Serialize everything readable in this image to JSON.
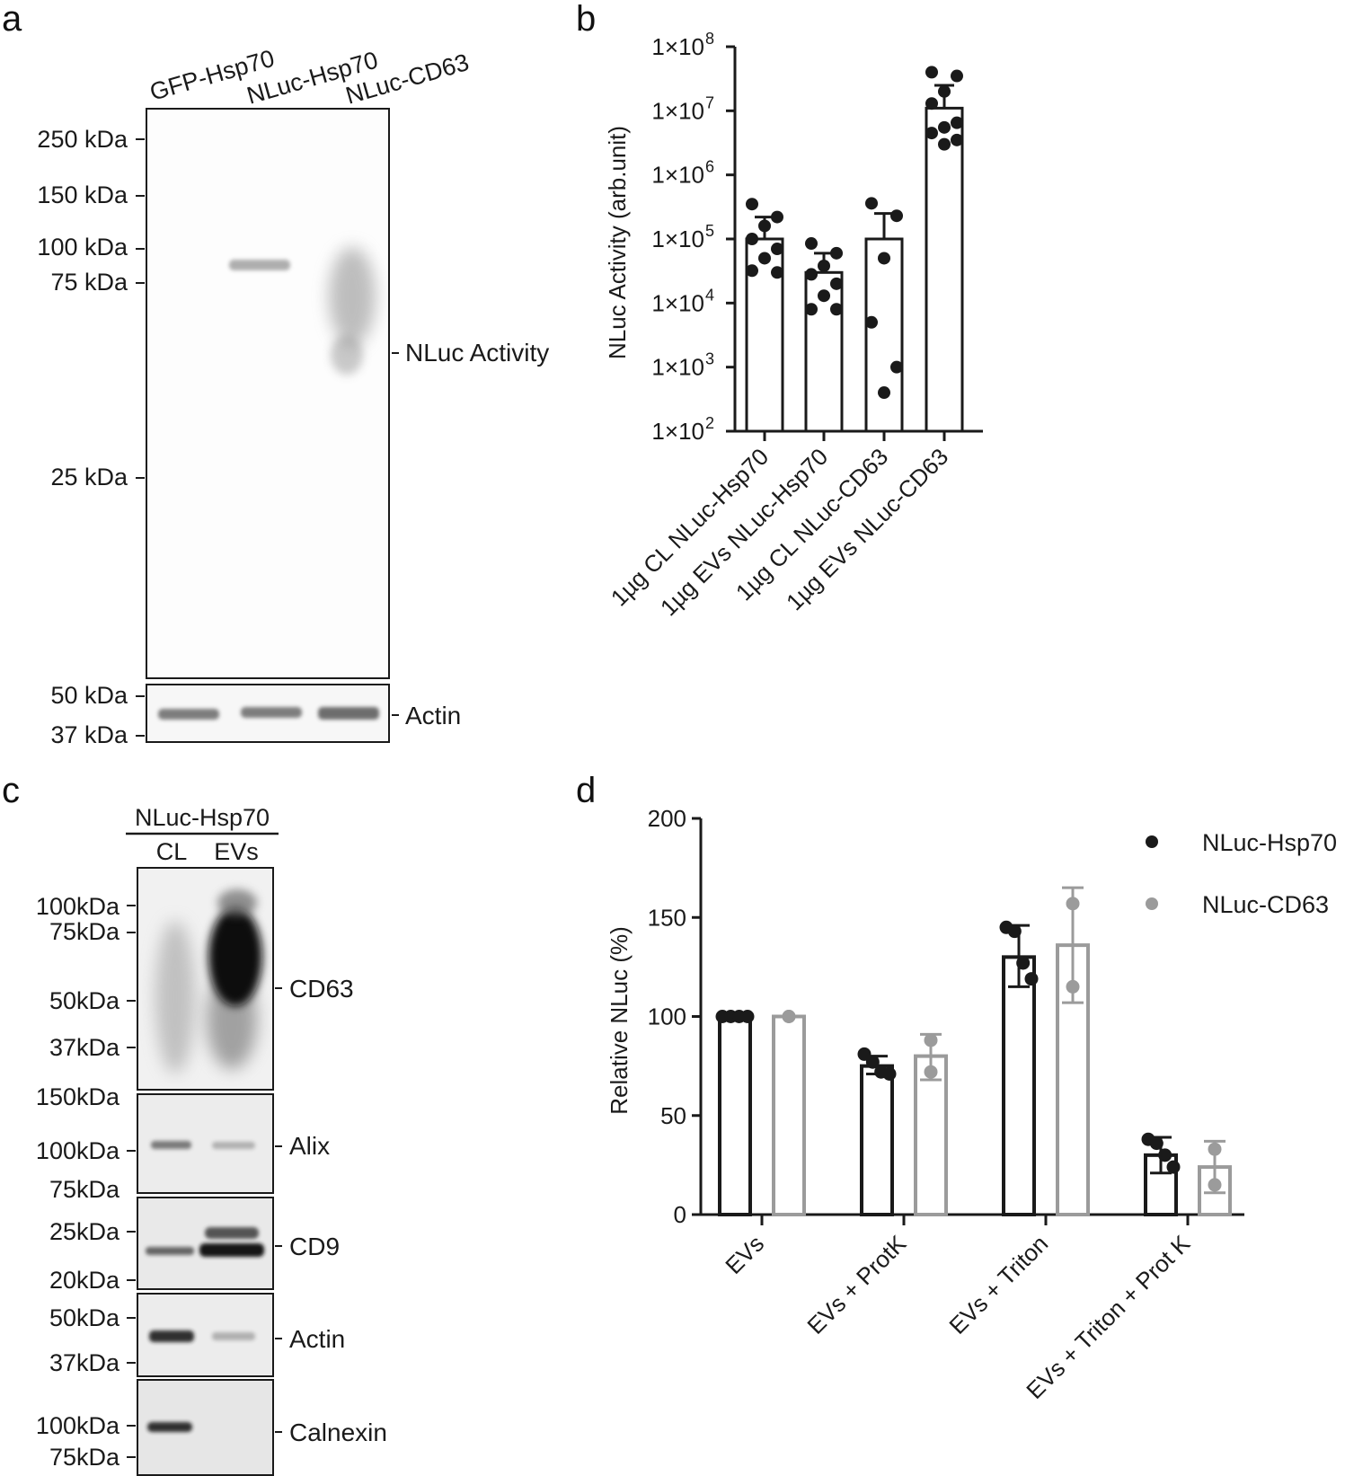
{
  "panels": {
    "a": {
      "letter": "a",
      "lanes": [
        "GFP-Hsp70",
        "NLuc-Hsp70",
        "NLuc-CD63"
      ],
      "markers_main": [
        "250 kDa",
        "150 kDa",
        "100 kDa",
        "75 kDa",
        "25 kDa"
      ],
      "markers_actin": [
        "50 kDa",
        "37 kDa"
      ],
      "band_labels": [
        "NLuc Activity",
        "Actin"
      ]
    },
    "b": {
      "letter": "b"
    },
    "c": {
      "letter": "c",
      "group_label": "NLuc-Hsp70",
      "lanes": [
        "CL",
        "EVs"
      ],
      "blots": [
        {
          "label": "CD63",
          "markers": [
            "100kDa",
            "75kDa",
            "50kDa",
            "37kDa"
          ]
        },
        {
          "label": "Alix",
          "markers": [
            "150kDa",
            "100kDa",
            "75kDa"
          ]
        },
        {
          "label": "CD9",
          "markers": [
            "25kDa",
            "20kDa"
          ]
        },
        {
          "label": "Actin",
          "markers": [
            "50kDa",
            "37kDa"
          ]
        },
        {
          "label": "Calnexin",
          "markers": [
            "100kDa",
            "75kDa"
          ]
        }
      ]
    },
    "d": {
      "letter": "d"
    }
  },
  "chart_data": [
    {
      "type": "bar",
      "ylabel": "NLuc Activity (arb.unit)",
      "yscale": "log",
      "ylim": [
        100,
        100000000
      ],
      "yticks": [
        100,
        1000,
        10000,
        100000,
        1000000,
        10000000,
        100000000
      ],
      "ytick_base": [
        "1×10",
        "1×10",
        "1×10",
        "1×10",
        "1×10",
        "1×10",
        "1×10"
      ],
      "ytick_exp": [
        "2",
        "3",
        "4",
        "5",
        "6",
        "7",
        "8"
      ],
      "categories": [
        "1µg CL NLuc-Hsp70",
        "1µg EVs NLuc-Hsp70",
        "1µg CL NLuc-CD63",
        "1µg EVs NLuc-CD63"
      ],
      "values": [
        100000,
        30000,
        100000,
        11000000
      ],
      "error_upper": [
        220000,
        60000,
        250000,
        25000000
      ],
      "points": [
        [
          350000,
          220000,
          160000,
          100000,
          70000,
          50000,
          32000,
          30000
        ],
        [
          85000,
          60000,
          38000,
          28000,
          20000,
          13000,
          8000,
          8000
        ],
        [
          360000,
          230000,
          50000,
          5000,
          1000,
          400
        ],
        [
          40000000,
          35000000,
          20000000,
          13000000,
          6500000,
          5500000,
          4500000,
          3500000,
          3000000
        ]
      ],
      "grid": false
    },
    {
      "type": "bar",
      "ylabel": "Relative NLuc (%)",
      "ylim": [
        0,
        200
      ],
      "yticks": [
        "0",
        "50",
        "100",
        "150",
        "200"
      ],
      "categories": [
        "EVs",
        "EVs + ProtK",
        "EVs + Triton",
        "EVs + Triton + Prot K"
      ],
      "legend_position": "top-right",
      "series": [
        {
          "name": "NLuc-Hsp70",
          "color": "#1a1a1a",
          "values": [
            100,
            75,
            130,
            30
          ],
          "error_upper": [
            100,
            80,
            146,
            39
          ],
          "error_lower": [
            100,
            71,
            115,
            21
          ],
          "points": [
            [
              100,
              100,
              100,
              100
            ],
            [
              81,
              77,
              72,
              71
            ],
            [
              145,
              143,
              127,
              119
            ],
            [
              38,
              36,
              30,
              24
            ]
          ]
        },
        {
          "name": "NLuc-CD63",
          "color": "#9b9b9b",
          "values": [
            100,
            80,
            136,
            24
          ],
          "error_upper": [
            100,
            91,
            165,
            37
          ],
          "error_lower": [
            100,
            68,
            107,
            11
          ],
          "points": [
            [
              100,
              100
            ],
            [
              88,
              72
            ],
            [
              157,
              115
            ],
            [
              33,
              15
            ]
          ]
        }
      ]
    }
  ]
}
